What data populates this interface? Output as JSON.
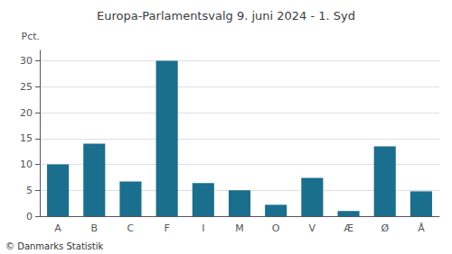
{
  "chart_data": {
    "type": "bar",
    "title": "Europa-Parlamentsvalg 9. juni 2024 - 1. Syd",
    "categories": [
      "A",
      "B",
      "C",
      "F",
      "I",
      "M",
      "O",
      "V",
      "Æ",
      "Ø",
      "Å"
    ],
    "values": [
      10.0,
      14.0,
      6.7,
      30.0,
      6.4,
      5.0,
      2.2,
      7.4,
      1.0,
      13.5,
      4.8
    ],
    "color": "#1a6e8e",
    "ylabel": "Pct.",
    "ylim": [
      0,
      32
    ],
    "yticks": [
      0,
      5,
      10,
      15,
      20,
      25,
      30
    ],
    "grid": true,
    "annotations": [
      "© Danmarks Statistik"
    ]
  }
}
